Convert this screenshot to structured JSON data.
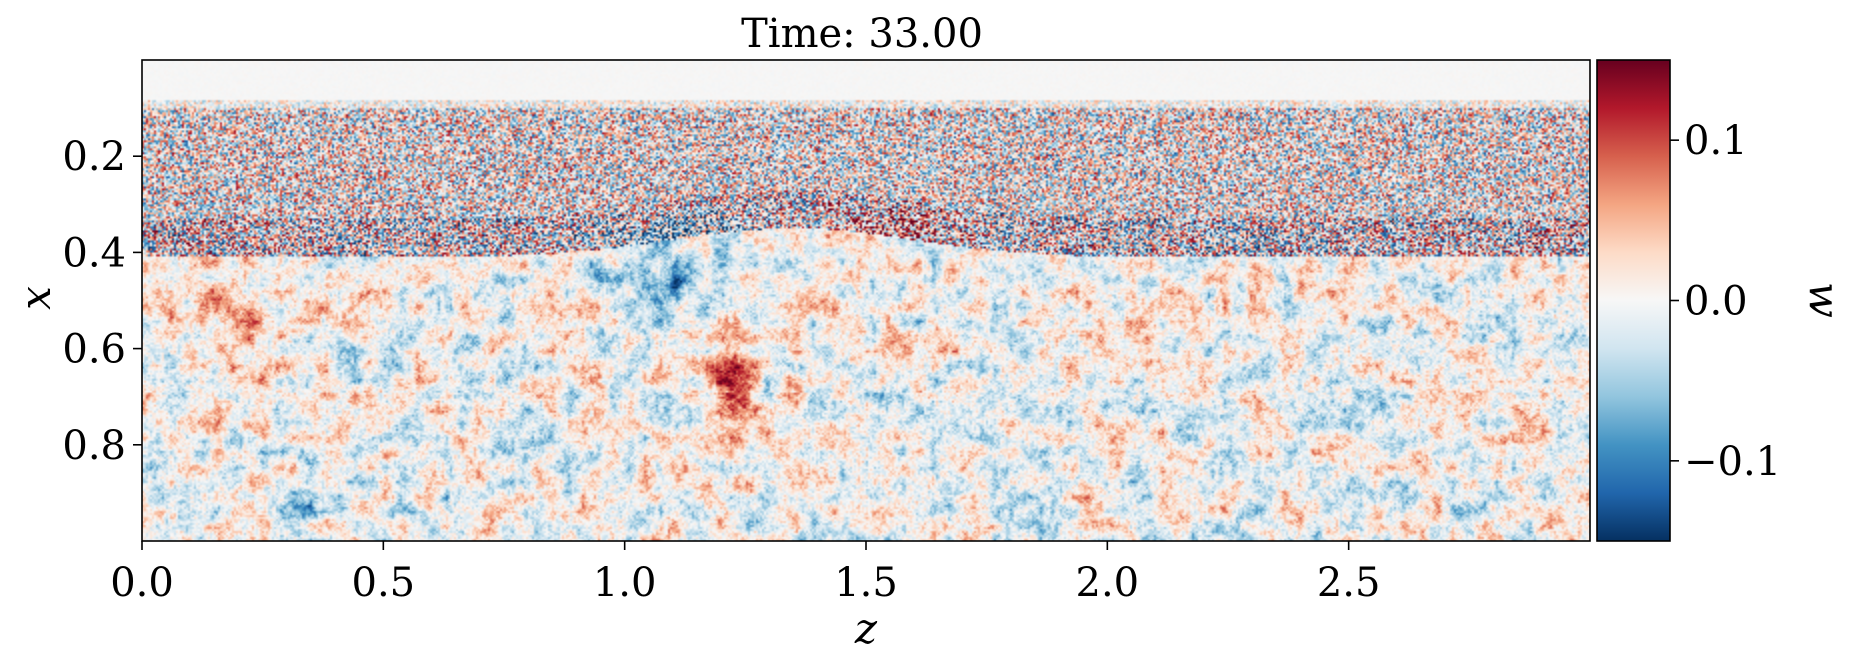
{
  "chart_data": {
    "type": "heatmap",
    "title": "Time: 33.00",
    "xlabel": "z",
    "ylabel": "x",
    "xlim": [
      0.0,
      3.0
    ],
    "ylim": [
      0.0,
      1.0
    ],
    "y_inverted": true,
    "x_ticks": [
      0.0,
      0.5,
      1.0,
      1.5,
      2.0,
      2.5
    ],
    "x_tick_labels": [
      "0.0",
      "0.5",
      "1.0",
      "1.5",
      "2.0",
      "2.5"
    ],
    "y_ticks": [
      0.2,
      0.4,
      0.6,
      0.8
    ],
    "y_tick_labels": [
      "0.2",
      "0.4",
      "0.6",
      "0.8"
    ],
    "colorbar": {
      "label": "w",
      "range": [
        -0.15,
        0.15
      ],
      "ticks": [
        0.1,
        0.0,
        -0.1
      ],
      "tick_labels": [
        "0.1",
        "0.0",
        "−0.1"
      ],
      "colormap": "RdBu_r",
      "colors": [
        "#053061",
        "#2166ac",
        "#4393c3",
        "#92c5de",
        "#d1e5f0",
        "#f7f7f7",
        "#fddbc7",
        "#f4a582",
        "#d6604d",
        "#b2182b",
        "#67001f"
      ]
    },
    "grid": false
  }
}
